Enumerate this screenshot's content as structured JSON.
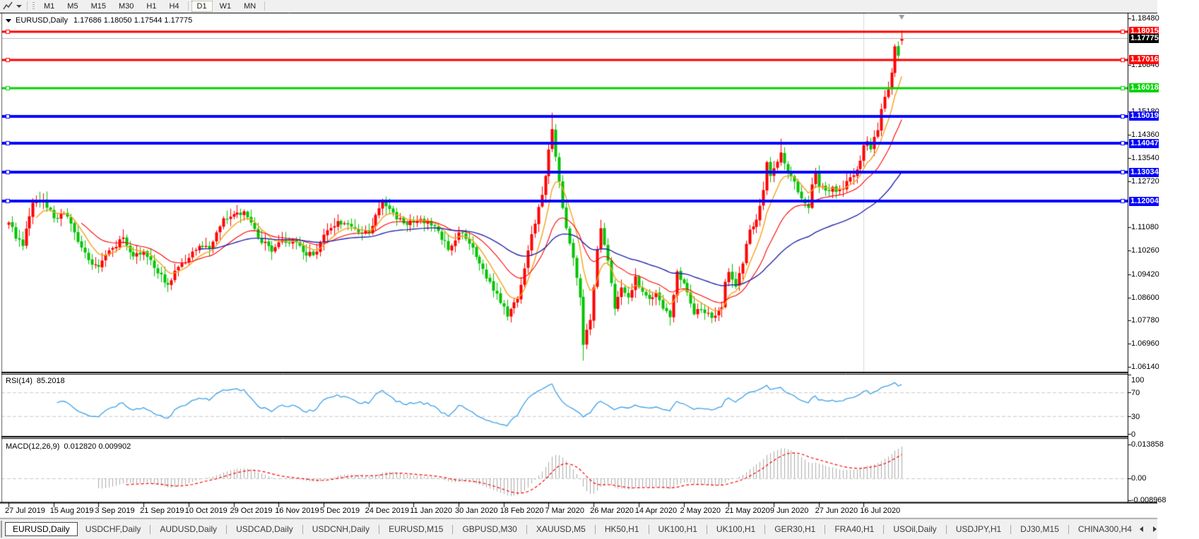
{
  "toolbar": {
    "timeframes": [
      "M1",
      "M5",
      "M15",
      "M30",
      "H1",
      "H4",
      "D1",
      "W1",
      "MN"
    ],
    "active_timeframe": "D1"
  },
  "chart": {
    "title_symbol": "EURUSD,Daily",
    "title_quotes": "1.17686 1.18050 1.17544 1.17775"
  },
  "price_axis": {
    "ticks": [
      "1.18480",
      "1.16840",
      "1.15180",
      "1.14360",
      "1.13540",
      "1.12720",
      "1.11080",
      "1.10260",
      "1.09420",
      "1.08600",
      "1.07780",
      "1.06960",
      "1.06140"
    ]
  },
  "horizontal_lines": [
    {
      "value": 1.18015,
      "label": "1.18015",
      "color": "#ff0000",
      "width": 3
    },
    {
      "value": 1.17016,
      "label": "1.17016",
      "color": "#ff0000",
      "width": 3
    },
    {
      "value": 1.16018,
      "label": "1.16018",
      "color": "#00d300",
      "width": 3
    },
    {
      "value": 1.15019,
      "label": "1.15019",
      "color": "#0000ff",
      "width": 4
    },
    {
      "value": 1.14047,
      "label": "1.14047",
      "color": "#0000ff",
      "width": 4
    },
    {
      "value": 1.13034,
      "label": "1.13034",
      "color": "#0000ff",
      "width": 4
    },
    {
      "value": 1.12004,
      "label": "1.12004",
      "color": "#0000ff",
      "width": 4
    }
  ],
  "current_price": {
    "value": 1.17775,
    "label": "1.17775",
    "line_color": "#b9b9b9",
    "label_bg": "#000000"
  },
  "rsi_panel": {
    "name": "RSI(14)",
    "value": "85.2018",
    "levels": [
      {
        "text": "100",
        "v": 100
      },
      {
        "text": "70",
        "v": 70
      },
      {
        "text": "30",
        "v": 30
      },
      {
        "text": "0",
        "v": 0
      }
    ],
    "dashed_levels": [
      70,
      30
    ],
    "line_color": "#3da0e8"
  },
  "macd_panel": {
    "name": "MACD(12,26,9)",
    "values": "0.012820 0.009902",
    "axis": [
      {
        "text": "0.013858",
        "v": 0.013858
      },
      {
        "text": "0.00",
        "v": 0
      },
      {
        "text": "-0.008968",
        "v": -0.008968
      }
    ],
    "hist_color": "#ababab",
    "signal_color": "#ff0000"
  },
  "date_axis": {
    "labels": [
      "27 Jul 2019",
      "15 Aug 2019",
      "3 Sep 2019",
      "21 Sep 2019",
      "10 Oct 2019",
      "29 Oct 2019",
      "16 Nov 2019",
      "5 Dec 2019",
      "24 Dec 2019",
      "11 Jan 2020",
      "30 Jan 2020",
      "18 Feb 2020",
      "7 Mar 2020",
      "26 Mar 2020",
      "14 Apr 2020",
      "2 May 2020",
      "21 May 2020",
      "9 Jun 2020",
      "27 Jun 2020",
      "16 Jul 2020"
    ],
    "bars_per_label": 13
  },
  "tabs": [
    "EURUSD,Daily",
    "USDCHF,Daily",
    "AUDUSD,Daily",
    "USDCAD,Daily",
    "USDCNH,Daily",
    "EURUSD,M15",
    "GBPUSD,M30",
    "XAUUSD,M5",
    "HK50,H1",
    "UK100,H1",
    "UK100,H1",
    "GER30,H1",
    "FRA40,H1",
    "USOil,Daily",
    "USDJPY,H1",
    "DJ30,M15",
    "CHINA300,H4"
  ],
  "active_tab_index": 0,
  "chart_data": {
    "type": "candlestick",
    "symbol": "EURUSD",
    "timeframe": "Daily",
    "ylim": [
      1.05965,
      1.18655
    ],
    "up_color": "#ff0000",
    "down_color": "#00c400",
    "wick_up_color": "#ff0000",
    "wick_down_color": "#00c400",
    "last_candle": {
      "open": 1.17686,
      "high": 1.1805,
      "low": 1.17544,
      "close": 1.17775
    },
    "close_anchors": [
      [
        0,
        1.1125
      ],
      [
        2,
        1.1068
      ],
      [
        4,
        1.1042
      ],
      [
        7,
        1.1195
      ],
      [
        10,
        1.1205
      ],
      [
        13,
        1.114
      ],
      [
        16,
        1.1158
      ],
      [
        19,
        1.109
      ],
      [
        23,
        1.0992
      ],
      [
        26,
        1.0968
      ],
      [
        30,
        1.1035
      ],
      [
        33,
        1.1072
      ],
      [
        36,
        1.1005
      ],
      [
        39,
        1.1022
      ],
      [
        43,
        1.0945
      ],
      [
        46,
        1.0905
      ],
      [
        49,
        1.0968
      ],
      [
        52,
        1.1
      ],
      [
        55,
        1.1042
      ],
      [
        58,
        1.1032
      ],
      [
        62,
        1.114
      ],
      [
        65,
        1.1155
      ],
      [
        68,
        1.1165
      ],
      [
        72,
        1.1072
      ],
      [
        76,
        1.1022
      ],
      [
        78,
        1.1055
      ],
      [
        82,
        1.1062
      ],
      [
        86,
        1.1008
      ],
      [
        89,
        1.1022
      ],
      [
        91,
        1.1082
      ],
      [
        95,
        1.113
      ],
      [
        98,
        1.1118
      ],
      [
        101,
        1.109
      ],
      [
        104,
        1.1088
      ],
      [
        108,
        1.12
      ],
      [
        111,
        1.116
      ],
      [
        114,
        1.1122
      ],
      [
        117,
        1.1125
      ],
      [
        121,
        1.1132
      ],
      [
        124,
        1.1095
      ],
      [
        127,
        1.1028
      ],
      [
        130,
        1.109
      ],
      [
        133,
        1.105
      ],
      [
        136,
        1.098
      ],
      [
        139,
        1.0915
      ],
      [
        142,
        1.084
      ],
      [
        144,
        1.0792
      ],
      [
        147,
        1.0855
      ],
      [
        150,
        1.1026
      ],
      [
        153,
        1.118
      ],
      [
        155,
        1.129
      ],
      [
        157,
        1.1456
      ],
      [
        159,
        1.127
      ],
      [
        161,
        1.1105
      ],
      [
        163,
        1.1
      ],
      [
        165,
        1.086
      ],
      [
        166,
        1.0692
      ],
      [
        168,
        1.078
      ],
      [
        170,
        1.103
      ],
      [
        171,
        1.1105
      ],
      [
        173,
        1.099
      ],
      [
        175,
        1.082
      ],
      [
        177,
        1.0895
      ],
      [
        179,
        1.086
      ],
      [
        181,
        1.0935
      ],
      [
        183,
        1.088
      ],
      [
        185,
        1.0855
      ],
      [
        187,
        1.0875
      ],
      [
        189,
        1.082
      ],
      [
        191,
        1.079
      ],
      [
        193,
        1.0952
      ],
      [
        195,
        1.091
      ],
      [
        197,
        1.0838
      ],
      [
        198,
        1.08
      ],
      [
        200,
        1.0815
      ],
      [
        202,
        1.0805
      ],
      [
        204,
        1.0795
      ],
      [
        206,
        1.0825
      ],
      [
        207,
        1.0915
      ],
      [
        208,
        1.095
      ],
      [
        210,
        1.0898
      ],
      [
        212,
        1.098
      ],
      [
        214,
        1.11
      ],
      [
        216,
        1.1135
      ],
      [
        218,
        1.124
      ],
      [
        219,
        1.1339
      ],
      [
        220,
        1.129
      ],
      [
        222,
        1.134
      ],
      [
        223,
        1.1373
      ],
      [
        225,
        1.1302
      ],
      [
        227,
        1.127
      ],
      [
        229,
        1.121
      ],
      [
        231,
        1.1177
      ],
      [
        232,
        1.126
      ],
      [
        233,
        1.1308
      ],
      [
        234,
        1.125
      ],
      [
        236,
        1.1238
      ],
      [
        238,
        1.1251
      ],
      [
        240,
        1.1242
      ],
      [
        242,
        1.1272
      ],
      [
        244,
        1.1292
      ],
      [
        246,
        1.1344
      ],
      [
        247,
        1.1399
      ],
      [
        248,
        1.1413
      ],
      [
        249,
        1.1384
      ],
      [
        250,
        1.1428
      ],
      [
        251,
        1.1452
      ],
      [
        252,
        1.1527
      ],
      [
        253,
        1.157
      ],
      [
        254,
        1.1596
      ],
      [
        255,
        1.1656
      ],
      [
        256,
        1.1749
      ],
      [
        257,
        1.1716
      ],
      [
        258,
        1.17775
      ]
    ],
    "key_extremes": {
      "4": {
        "low": 1.1027
      },
      "46": {
        "low": 1.0879
      },
      "144": {
        "low": 1.0778
      },
      "157": {
        "high": 1.1514
      },
      "166": {
        "low": 1.0636
      },
      "223": {
        "high": 1.1422
      }
    },
    "moving_averages": [
      {
        "type": "ema",
        "period": 8,
        "color": "#f7a21b",
        "width": 1.4
      },
      {
        "type": "ema",
        "period": 21,
        "color": "#ff0000",
        "width": 1.1
      },
      {
        "type": "ema",
        "period": 55,
        "color": "#2626ae",
        "width": 1.4
      }
    ],
    "rsi": {
      "period": 14
    },
    "macd": {
      "fast": 12,
      "slow": 26,
      "signal": 9
    },
    "grid_line_label_index": 19,
    "grid_color": "#d8d8d8",
    "shift_marker_color": "#9a9a9a"
  }
}
